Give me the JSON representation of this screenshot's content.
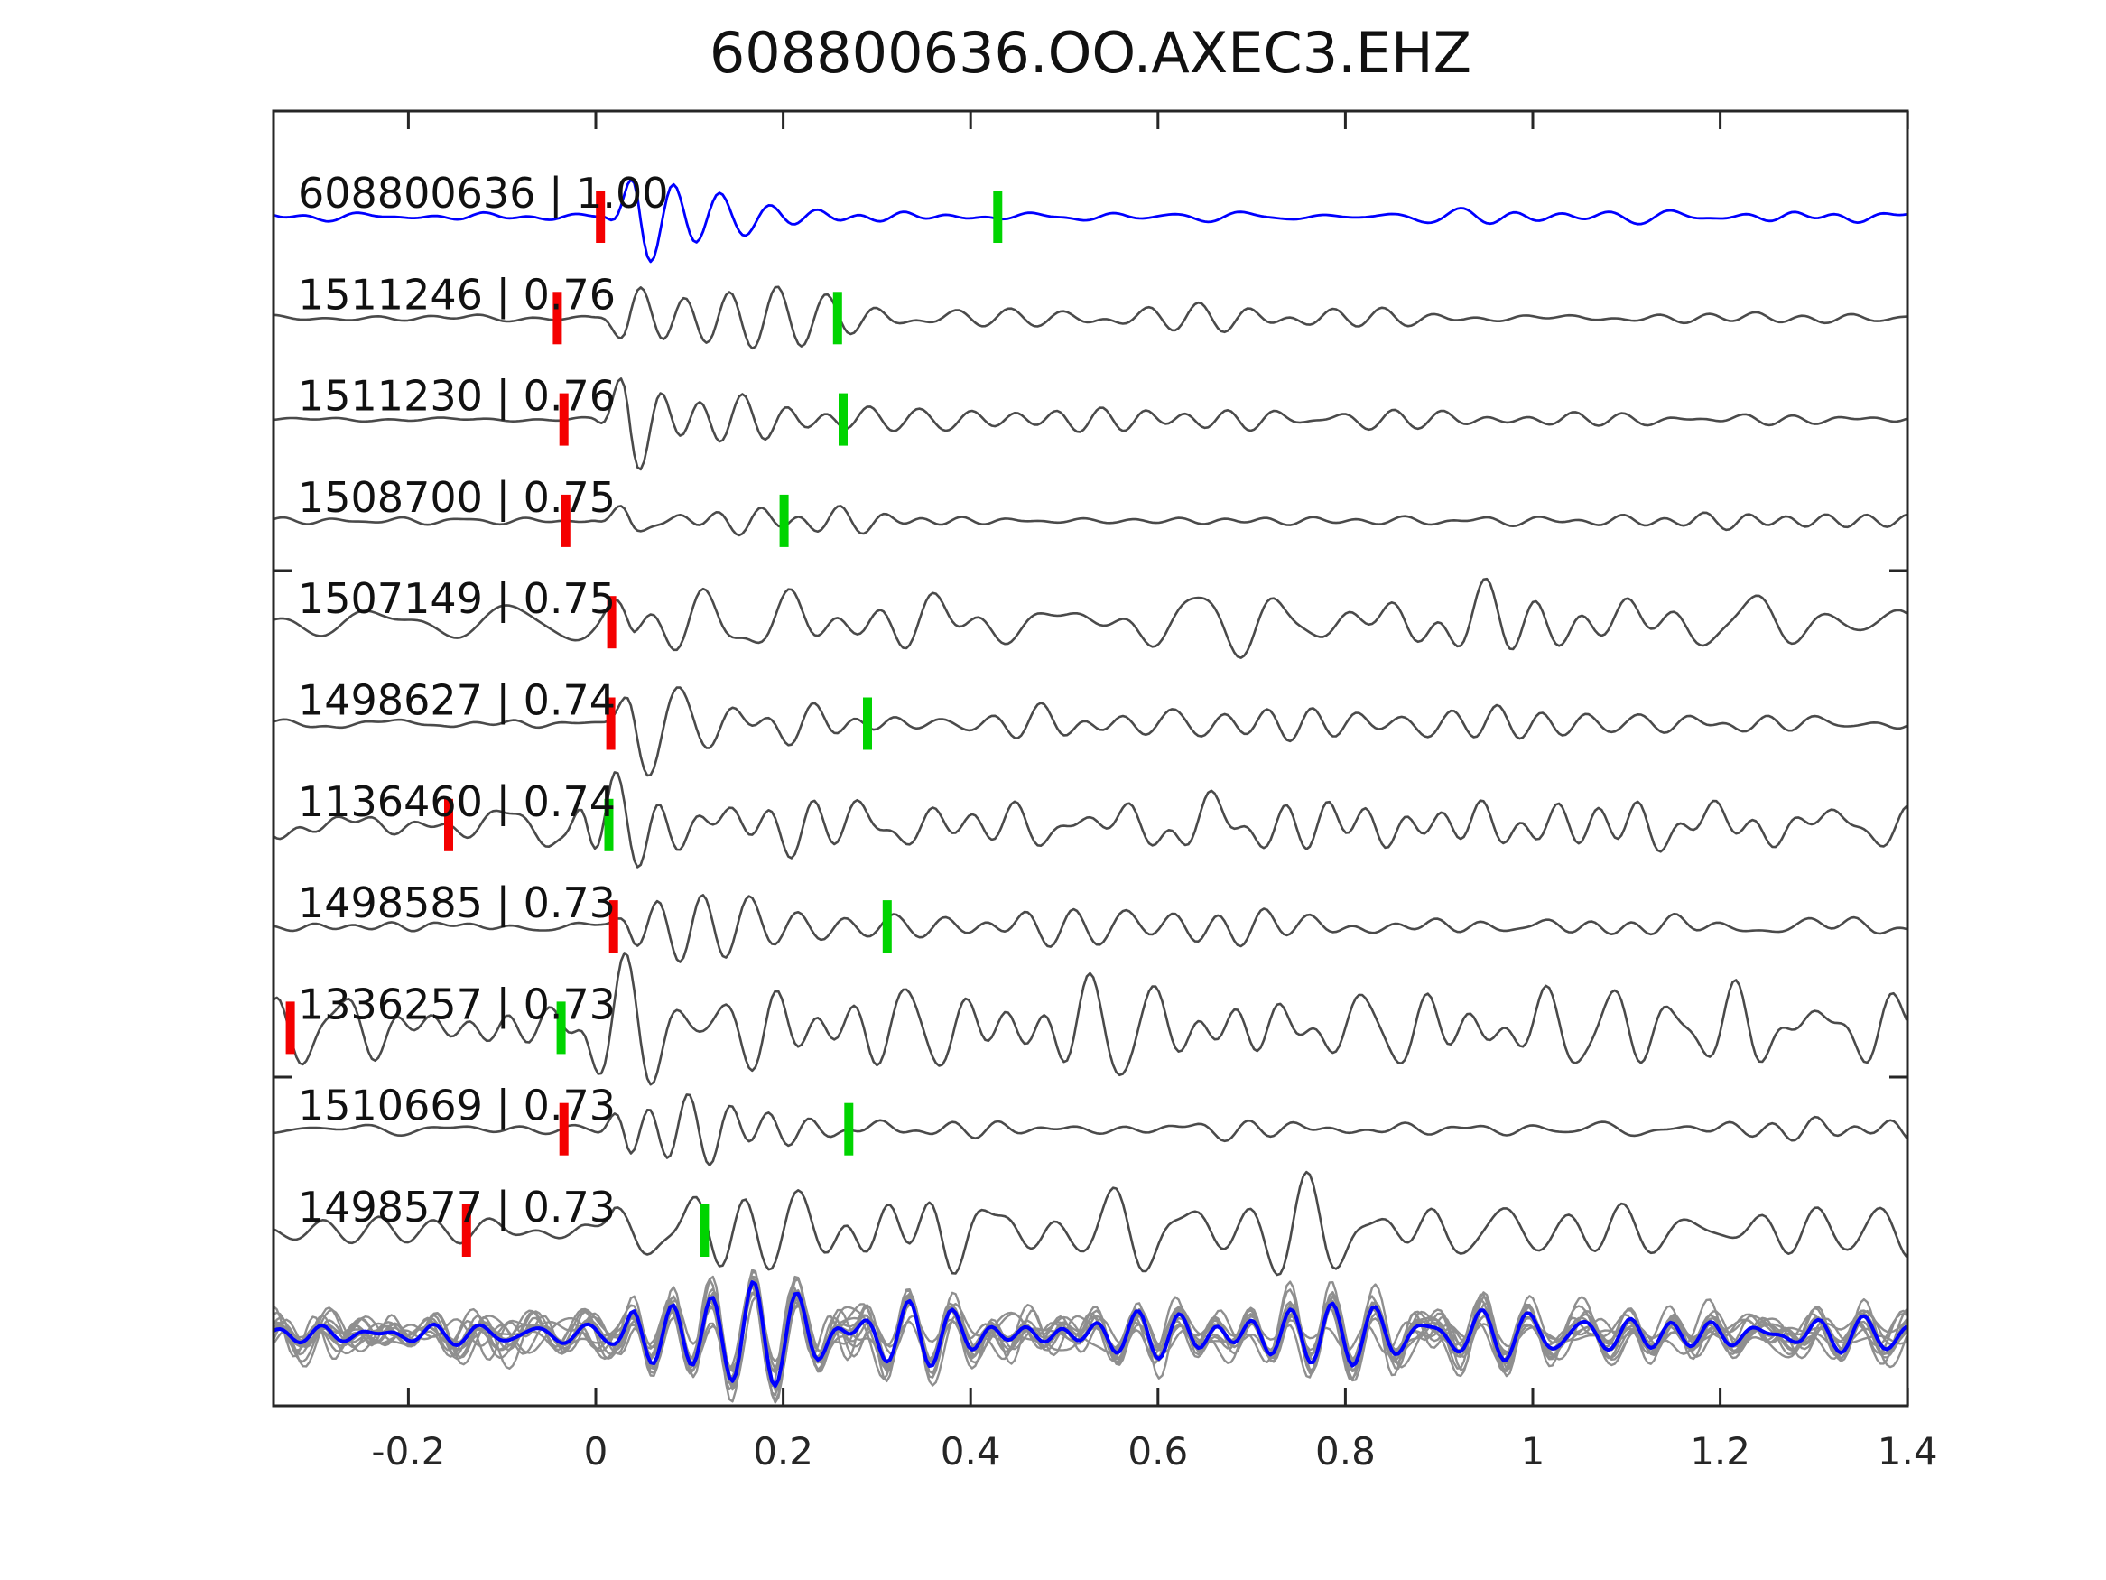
{
  "title": "608800636.OO.AXEC3.EHZ",
  "colors": {
    "template_blue": "#0000ff",
    "trace_gray": "#4a4a4a",
    "stack_gray": "#8f8f8f",
    "pick_red": "#f40000",
    "pick_green": "#00d400",
    "axis": "#262626"
  },
  "chart_data": {
    "type": "line",
    "title": "608800636.OO.AXEC3.EHZ",
    "xlabel": "",
    "ylabel": "",
    "xlim": [
      -0.344,
      1.4
    ],
    "grid": false,
    "xticks": [
      "-0.2",
      "0",
      "0.2",
      "0.4",
      "0.6",
      "0.8",
      "1",
      "1.2",
      "1.4"
    ],
    "xtick_values": [
      -0.2,
      0,
      0.2,
      0.4,
      0.6,
      0.8,
      1,
      1.2,
      1.4
    ],
    "legend": "none",
    "traces": [
      {
        "id": "608800636",
        "cc": "1.00",
        "label": "608800636 | 1.00",
        "color": "blue",
        "picks": [
          {
            "t": 0.005,
            "color": "red"
          },
          {
            "t": 0.429,
            "color": "green"
          }
        ],
        "wave": {
          "pre": 4,
          "t0": 0.005,
          "amp": 60,
          "tau": 0.1,
          "cf": 0.1,
          "seed": 11
        }
      },
      {
        "id": "1511246",
        "cc": "0.76",
        "label": "1511246 | 0.76",
        "color": "gray",
        "picks": [
          {
            "t": -0.041,
            "color": "red"
          },
          {
            "t": 0.258,
            "color": "green"
          }
        ],
        "wave": {
          "pre": 2.5,
          "t0": -0.005,
          "amp": 62,
          "tau": 0.16,
          "cf": 0.16,
          "seed": 22
        }
      },
      {
        "id": "1511230",
        "cc": "0.76",
        "label": "1511230 | 0.76",
        "color": "gray",
        "picks": [
          {
            "t": -0.034,
            "color": "red"
          },
          {
            "t": 0.264,
            "color": "green"
          }
        ],
        "wave": {
          "pre": 2.5,
          "t0": -0.005,
          "amp": 64,
          "tau": 0.18,
          "cf": 0.17,
          "seed": 33
        }
      },
      {
        "id": "1508700",
        "cc": "0.75",
        "label": "1508700 | 0.75",
        "color": "gray",
        "picks": [
          {
            "t": -0.032,
            "color": "red"
          },
          {
            "t": 0.201,
            "color": "green"
          }
        ],
        "wave": {
          "pre": 3,
          "t0": -0.005,
          "amp": 58,
          "tau": 0.11,
          "cf": 0.14,
          "seed": 44
        }
      },
      {
        "id": "1507149",
        "cc": "0.75",
        "label": "1507149 | 0.75",
        "color": "gray",
        "picks": [
          {
            "t": 0.017,
            "color": "red"
          }
        ],
        "wave": {
          "pre": 17,
          "t0": 0.0,
          "amp": 55,
          "tau": 0.3,
          "cf": 0.42,
          "seed": 55
        }
      },
      {
        "id": "1498627",
        "cc": "0.74",
        "label": "1498627 | 0.74",
        "color": "gray",
        "picks": [
          {
            "t": 0.016,
            "color": "red"
          },
          {
            "t": 0.29,
            "color": "green"
          }
        ],
        "wave": {
          "pre": 3,
          "t0": 0.0,
          "amp": 62,
          "tau": 0.22,
          "cf": 0.25,
          "seed": 66
        }
      },
      {
        "id": "1136460",
        "cc": "0.74",
        "label": "1136460 | 0.74",
        "color": "gray",
        "picks": [
          {
            "t": -0.157,
            "color": "red"
          },
          {
            "t": 0.014,
            "color": "green"
          }
        ],
        "wave": {
          "pre": 11,
          "t0": -0.05,
          "amp": 52,
          "tau": 0.3,
          "cf": 0.3,
          "seed": 77
        }
      },
      {
        "id": "1498585",
        "cc": "0.73",
        "label": "1498585 | 0.73",
        "color": "gray",
        "picks": [
          {
            "t": 0.019,
            "color": "red"
          },
          {
            "t": 0.311,
            "color": "green"
          }
        ],
        "wave": {
          "pre": 4,
          "t0": 0.0,
          "amp": 64,
          "tau": 0.22,
          "cf": 0.24,
          "seed": 88
        }
      },
      {
        "id": "1336257",
        "cc": "0.73",
        "label": "1336257 | 0.73",
        "color": "gray",
        "picks": [
          {
            "t": -0.326,
            "color": "red"
          },
          {
            "t": -0.037,
            "color": "green"
          }
        ],
        "wave": {
          "pre": 26,
          "t0": -0.05,
          "amp": 58,
          "tau": 0.35,
          "cf": 0.38,
          "seed": 99
        }
      },
      {
        "id": "1510669",
        "cc": "0.73",
        "label": "1510669 | 0.73",
        "color": "gray",
        "picks": [
          {
            "t": -0.034,
            "color": "red"
          },
          {
            "t": 0.27,
            "color": "green"
          }
        ],
        "wave": {
          "pre": 3.5,
          "t0": -0.005,
          "amp": 60,
          "tau": 0.2,
          "cf": 0.2,
          "seed": 110
        }
      },
      {
        "id": "1498577",
        "cc": "0.73",
        "label": "1498577 | 0.73",
        "color": "gray",
        "picks": [
          {
            "t": -0.138,
            "color": "red"
          },
          {
            "t": 0.116,
            "color": "green"
          }
        ],
        "wave": {
          "pre": 18,
          "t0": -0.02,
          "amp": 60,
          "tau": 0.3,
          "cf": 0.3,
          "seed": 121
        }
      }
    ],
    "stack": {
      "description": "overlay of all detection waveforms (gray) with template (blue)",
      "n_gray": 12,
      "wave": {
        "pre": 6,
        "t0": 0.0,
        "amp": 88,
        "tau": 0.35,
        "cf": 0.3,
        "seed": 200
      }
    }
  }
}
